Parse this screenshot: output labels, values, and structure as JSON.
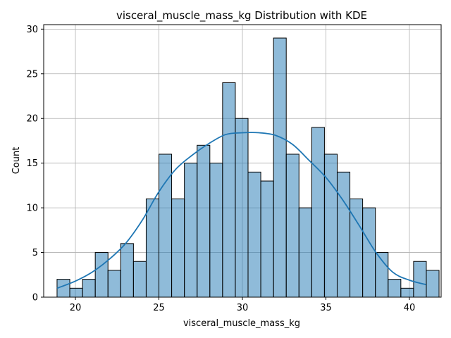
{
  "chart_data": {
    "type": "histogram",
    "title": "visceral_muscle_mass_kg Distribution with KDE",
    "xlabel": "visceral_muscle_mass_kg",
    "ylabel": "Count",
    "xlim": [
      18.1,
      41.9
    ],
    "ylim": [
      0,
      30.5
    ],
    "xticks": [
      20,
      25,
      30,
      35,
      40
    ],
    "yticks": [
      0,
      5,
      10,
      15,
      20,
      25,
      30
    ],
    "grid": true,
    "bar_color": "#1f77b4",
    "kde_color": "#1f77b4",
    "bin_start": 18.9,
    "bin_width": 0.7625,
    "counts": [
      2,
      1,
      2,
      5,
      3,
      6,
      4,
      11,
      16,
      11,
      15,
      17,
      15,
      24,
      20,
      14,
      13,
      29,
      16,
      10,
      19,
      16,
      14,
      11,
      10,
      5,
      2,
      1,
      4,
      3
    ],
    "kde": {
      "x": [
        18.9,
        20,
        21,
        22,
        23,
        24,
        25,
        26,
        27,
        28,
        29,
        30,
        31,
        32,
        33,
        34,
        35,
        36,
        37,
        38,
        39,
        40,
        41
      ],
      "y": [
        1.0,
        1.8,
        2.8,
        4.2,
        6.0,
        8.6,
        11.8,
        14.3,
        15.9,
        17.2,
        18.2,
        18.4,
        18.4,
        18.1,
        17.1,
        15.3,
        13.4,
        10.9,
        8.0,
        5.0,
        2.8,
        1.9,
        1.4
      ]
    }
  }
}
